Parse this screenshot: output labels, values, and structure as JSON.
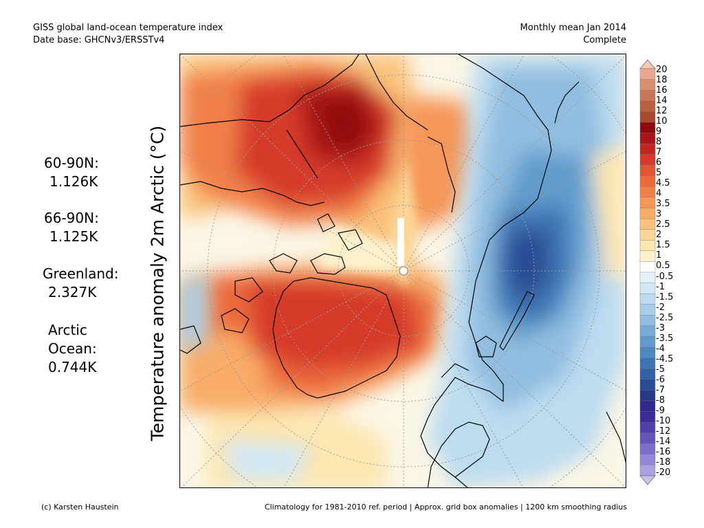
{
  "header": {
    "title": "GISS global land-ocean temperature index",
    "database": "Date base: GHCNv3/ERSSTv4",
    "period": "Monthly mean Jan 2014",
    "status": "Complete"
  },
  "stats": {
    "n60_label": "60-90N:",
    "n60_value": "1.126K",
    "n66_label": "66-90N:",
    "n66_value": "1.125K",
    "greenland_label": "Greenland:",
    "greenland_value": "2.327K",
    "arctic_label_1": "Arctic",
    "arctic_label_2": "Ocean:",
    "arctic_value": "0.744K"
  },
  "y_axis_label": "Temperature anomaly 2m Arctic (°C)",
  "colorbar": {
    "labels": [
      "20",
      "18",
      "16",
      "14",
      "12",
      "10",
      "9",
      "8",
      "7",
      "6",
      "5",
      "4.5",
      "4",
      "3.5",
      "3",
      "2.5",
      "2",
      "1.5",
      "1",
      "0.5",
      "-0.5",
      "-1",
      "-1.5",
      "-2",
      "-2.5",
      "-3",
      "-3.5",
      "-4",
      "-4.5",
      "-5",
      "-6",
      "-7",
      "-8",
      "-9",
      "-10",
      "-12",
      "-14",
      "-16",
      "-18",
      "-20"
    ],
    "colors": [
      "#f5c7b4",
      "#e8a890",
      "#d89070",
      "#c87858",
      "#b86040",
      "#a84830",
      "#8e0a0e",
      "#a81418",
      "#c22624",
      "#d63a2c",
      "#e25434",
      "#ec6a3c",
      "#f2804a",
      "#f69658",
      "#f8ac68",
      "#fac27c",
      "#fcd696",
      "#fde6b0",
      "#fdf2cc",
      "#ffffff",
      "#e4f2fb",
      "#d2e8f6",
      "#bddcf0",
      "#a8cde8",
      "#90bde0",
      "#78acd6",
      "#609bcc",
      "#4e88c0",
      "#3e74b2",
      "#3260a4",
      "#2a4c94",
      "#263888",
      "#30288a",
      "#3c2c96",
      "#5040a8",
      "#6654ba",
      "#7e6cca",
      "#9686d8",
      "#aca0e2",
      "#c8c0ee"
    ]
  },
  "footer": {
    "credit": "(c) Karsten Haustein",
    "note": "Climatology for 1981-2010 ref. period | Approx. grid box anomalies | 1200 km smoothing radius"
  }
}
